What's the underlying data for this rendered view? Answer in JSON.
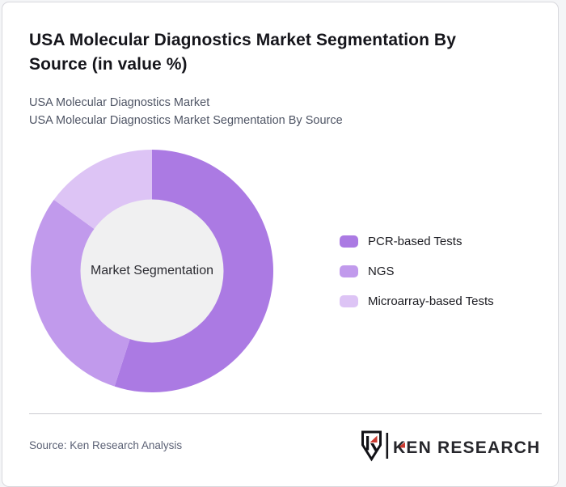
{
  "page": {
    "title": "USA Molecular Diagnostics Market Segmentation By Source (in value %)",
    "subtitle_line1": "USA Molecular Diagnostics Market",
    "subtitle_line2": "USA Molecular Diagnostics Market Segmentation By Source"
  },
  "chart_data": {
    "type": "pie",
    "subtype": "donut",
    "title": "USA Molecular Diagnostics Market Segmentation By Source (in value %)",
    "unit": "value %",
    "categories": [
      "PCR-based Tests",
      "NGS",
      "Microarray-based Tests"
    ],
    "values": [
      55,
      30,
      15
    ],
    "colors": [
      "#ab7ae3",
      "#c19aec",
      "#ddc4f5"
    ],
    "center_label": "Market Segmentation",
    "legend_position": "right",
    "start_angle_deg": 0,
    "direction": "clockwise",
    "inner_radius_ratio": 0.59,
    "hole_fill": "#f0f0f1"
  },
  "legend": {
    "items": [
      {
        "label": "PCR-based Tests",
        "color": "#ab7ae3"
      },
      {
        "label": "NGS",
        "color": "#c19aec"
      },
      {
        "label": "Microarray-based Tests",
        "color": "#ddc4f5"
      }
    ]
  },
  "footer": {
    "source_text": "Source: Ken Research Analysis",
    "logo_text": "KEN RESEARCH"
  },
  "icons": {
    "shield": "ken-research-shield-icon"
  },
  "colors": {
    "accent_red": "#cb3a30",
    "logo_dark": "#26262b",
    "title": "#15151b",
    "subtitle": "#4f5565",
    "divider": "#cacad1"
  }
}
